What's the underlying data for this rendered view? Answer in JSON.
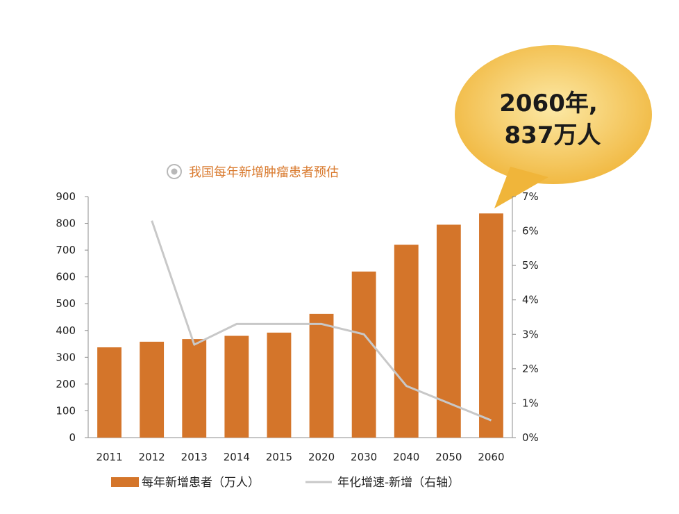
{
  "colors": {
    "bar": "#D4752A",
    "line": "#C8C8C8",
    "axis": "#8C8C8C",
    "title": "#D97A2E",
    "bubble_light": "#FCE9A6",
    "bubble_dark": "#F0B53A"
  },
  "title_icon": "target-circle-icon",
  "callout": {
    "line1": "2060年,",
    "line2": "837万人"
  },
  "chart_data": {
    "type": "bar",
    "title": "我国每年新增肿瘤患者预估",
    "categories": [
      "2011",
      "2012",
      "2013",
      "2014",
      "2015",
      "2020",
      "2030",
      "2040",
      "2050",
      "2060"
    ],
    "series": [
      {
        "name": "每年新增患者（万人）",
        "type": "bar",
        "axis": "left",
        "values": [
          337,
          358,
          368,
          380,
          392,
          462,
          620,
          720,
          795,
          837
        ]
      },
      {
        "name": "年化增速-新增（右轴）",
        "type": "line",
        "axis": "right",
        "values": [
          null,
          6.3,
          2.7,
          3.3,
          3.3,
          3.3,
          3.0,
          1.5,
          1.0,
          0.5
        ]
      }
    ],
    "y_left": {
      "ylim": [
        0,
        900
      ],
      "ticks": [
        "0",
        "100",
        "200",
        "300",
        "400",
        "500",
        "600",
        "700",
        "800",
        "900"
      ]
    },
    "y_right": {
      "ylim": [
        0,
        7
      ],
      "ticks": [
        "0%",
        "1%",
        "2%",
        "3%",
        "4%",
        "5%",
        "6%",
        "7%"
      ]
    },
    "legend_position": "bottom",
    "grid": false
  }
}
